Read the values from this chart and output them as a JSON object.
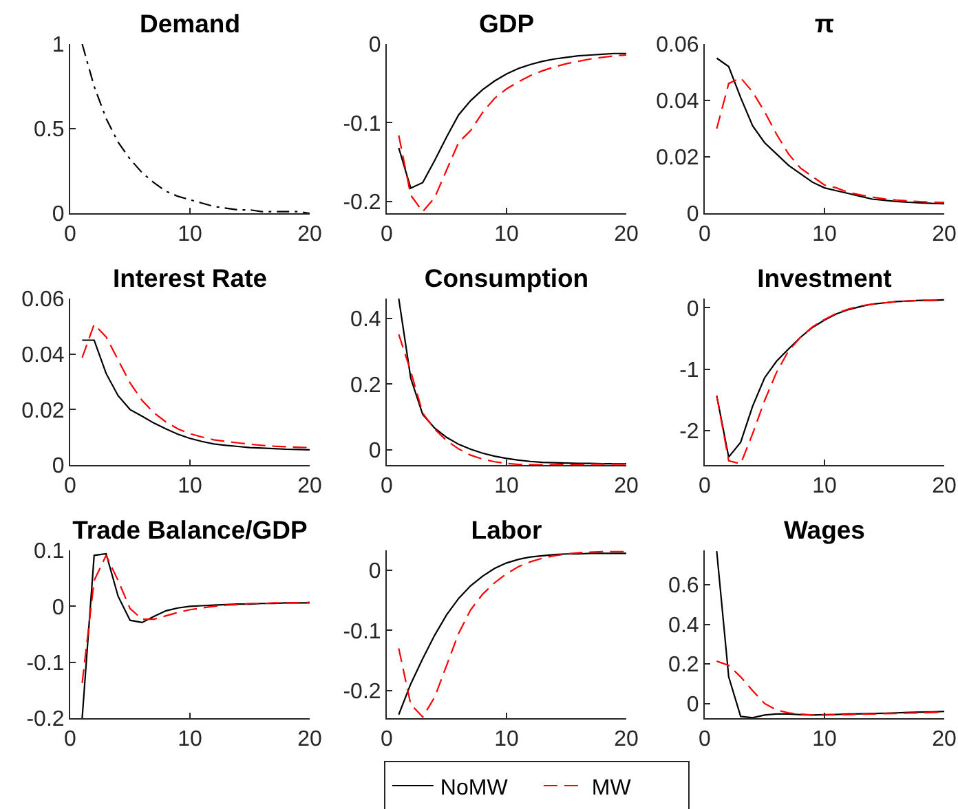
{
  "chart_data": [
    {
      "type": "line",
      "title": "Demand",
      "x": [
        1,
        2,
        3,
        4,
        5,
        6,
        7,
        8,
        9,
        10,
        11,
        12,
        13,
        14,
        15,
        16,
        17,
        18,
        19,
        20
      ],
      "xlim": [
        0,
        20
      ],
      "xticks": [
        0,
        10,
        20
      ],
      "ylim": [
        0,
        1
      ],
      "yticks": [
        0,
        0.5,
        1
      ],
      "series": [
        {
          "color": "#000000",
          "line_style": "dashdot",
          "values": [
            1,
            0.75,
            0.56,
            0.42,
            0.32,
            0.24,
            0.18,
            0.13,
            0.1,
            0.08,
            0.06,
            0.04,
            0.03,
            0.02,
            0.02,
            0.01,
            0.01,
            0.01,
            0.01,
            0
          ]
        }
      ]
    },
    {
      "type": "line",
      "title": "GDP",
      "x": [
        1,
        2,
        3,
        4,
        5,
        6,
        7,
        8,
        9,
        10,
        11,
        12,
        13,
        14,
        15,
        16,
        17,
        18,
        19,
        20
      ],
      "xlim": [
        0,
        20
      ],
      "xticks": [
        0,
        10,
        20
      ],
      "ylim": [
        -0.215,
        0
      ],
      "yticks": [
        -0.2,
        -0.1,
        0
      ],
      "series": [
        {
          "color": "#000000",
          "line_style": "solid",
          "values": [
            -0.132,
            -0.183,
            -0.176,
            -0.148,
            -0.118,
            -0.09,
            -0.072,
            -0.058,
            -0.047,
            -0.038,
            -0.031,
            -0.026,
            -0.022,
            -0.019,
            -0.017,
            -0.015,
            -0.014,
            -0.013,
            -0.012,
            -0.012
          ]
        },
        {
          "color": "#ff0000",
          "line_style": "dashed",
          "values": [
            -0.116,
            -0.192,
            -0.213,
            -0.195,
            -0.16,
            -0.125,
            -0.11,
            -0.087,
            -0.069,
            -0.057,
            -0.048,
            -0.04,
            -0.034,
            -0.029,
            -0.025,
            -0.022,
            -0.019,
            -0.017,
            -0.015,
            -0.014
          ]
        }
      ]
    },
    {
      "type": "line",
      "title": "π",
      "x": [
        1,
        2,
        3,
        4,
        5,
        6,
        7,
        8,
        9,
        10,
        11,
        12,
        13,
        14,
        15,
        16,
        17,
        18,
        19,
        20
      ],
      "xlim": [
        0,
        20
      ],
      "xticks": [
        0,
        10,
        20
      ],
      "ylim": [
        0,
        0.06
      ],
      "yticks": [
        0,
        0.02,
        0.04,
        0.06
      ],
      "series": [
        {
          "color": "#000000",
          "line_style": "solid",
          "values": [
            0.055,
            0.052,
            0.041,
            0.031,
            0.025,
            0.021,
            0.017,
            0.014,
            0.011,
            0.009,
            0.008,
            0.007,
            0.006,
            0.005,
            0.0046,
            0.0042,
            0.0039,
            0.0037,
            0.0035,
            0.0034
          ]
        },
        {
          "color": "#ff0000",
          "line_style": "dashed",
          "values": [
            0.03,
            0.046,
            0.048,
            0.043,
            0.036,
            0.028,
            0.021,
            0.016,
            0.013,
            0.01,
            0.009,
            0.0074,
            0.0065,
            0.0057,
            0.0051,
            0.0047,
            0.0044,
            0.0041,
            0.0039,
            0.0038
          ]
        }
      ]
    },
    {
      "type": "line",
      "title": "Interest Rate",
      "x": [
        1,
        2,
        3,
        4,
        5,
        6,
        7,
        8,
        9,
        10,
        11,
        12,
        13,
        14,
        15,
        16,
        17,
        18,
        19,
        20
      ],
      "xlim": [
        0,
        20
      ],
      "xticks": [
        0,
        10,
        20
      ],
      "ylim": [
        0,
        0.06
      ],
      "yticks": [
        0,
        0.02,
        0.04,
        0.06
      ],
      "series": [
        {
          "color": "#000000",
          "line_style": "solid",
          "values": [
            0.045,
            0.045,
            0.033,
            0.025,
            0.02,
            0.0176,
            0.0151,
            0.013,
            0.0111,
            0.0096,
            0.0085,
            0.0076,
            0.0071,
            0.0067,
            0.0063,
            0.0061,
            0.0059,
            0.0057,
            0.0056,
            0.0055
          ]
        },
        {
          "color": "#ff0000",
          "line_style": "dashed",
          "values": [
            0.0387,
            0.0507,
            0.0462,
            0.0379,
            0.0296,
            0.0233,
            0.0188,
            0.0155,
            0.013,
            0.0113,
            0.0101,
            0.0091,
            0.0085,
            0.008,
            0.0075,
            0.0071,
            0.0068,
            0.0066,
            0.0064,
            0.0063
          ]
        }
      ]
    },
    {
      "type": "line",
      "title": "Consumption",
      "x": [
        1,
        2,
        3,
        4,
        5,
        6,
        7,
        8,
        9,
        10,
        11,
        12,
        13,
        14,
        15,
        16,
        17,
        18,
        19,
        20
      ],
      "xlim": [
        0,
        20
      ],
      "xticks": [
        0,
        10,
        20
      ],
      "ylim": [
        -0.046,
        0.46
      ],
      "yticks": [
        0,
        0.2,
        0.4
      ],
      "series": [
        {
          "color": "#000000",
          "line_style": "solid",
          "values": [
            0.46,
            0.218,
            0.108,
            0.066,
            0.038,
            0.017,
            0.002,
            -0.01,
            -0.019,
            -0.026,
            -0.031,
            -0.035,
            -0.038,
            -0.039,
            -0.04,
            -0.041,
            -0.041,
            -0.042,
            -0.042,
            -0.042
          ]
        },
        {
          "color": "#ff0000",
          "line_style": "dashed",
          "values": [
            0.351,
            0.239,
            0.112,
            0.063,
            0.028,
            0.003,
            -0.016,
            -0.028,
            -0.036,
            -0.041,
            -0.044,
            -0.045,
            -0.045,
            -0.045,
            -0.044,
            -0.044,
            -0.043,
            -0.043,
            -0.043,
            -0.043
          ]
        }
      ]
    },
    {
      "type": "line",
      "title": "Investment",
      "x": [
        1,
        2,
        3,
        4,
        5,
        6,
        7,
        8,
        9,
        10,
        11,
        12,
        13,
        14,
        15,
        16,
        17,
        18,
        19,
        20
      ],
      "xlim": [
        0,
        20
      ],
      "xticks": [
        0,
        10,
        20
      ],
      "ylim": [
        -2.56,
        0.15
      ],
      "yticks": [
        -2,
        -1,
        0
      ],
      "series": [
        {
          "color": "#000000",
          "line_style": "solid",
          "values": [
            -1.43,
            -2.43,
            -2.19,
            -1.6,
            -1.14,
            -0.87,
            -0.67,
            -0.48,
            -0.32,
            -0.2,
            -0.1,
            -0.03,
            0.02,
            0.06,
            0.08,
            0.1,
            0.11,
            0.12,
            0.12,
            0.13
          ]
        },
        {
          "color": "#ff0000",
          "line_style": "dashed",
          "values": [
            -1.43,
            -2.49,
            -2.54,
            -2.05,
            -1.51,
            -1.05,
            -0.7,
            -0.48,
            -0.31,
            -0.19,
            -0.09,
            -0.02,
            0.03,
            0.06,
            0.08,
            0.1,
            0.11,
            0.12,
            0.12,
            0.13
          ]
        }
      ]
    },
    {
      "type": "line",
      "title": "Trade Balance/GDP",
      "x": [
        1,
        2,
        3,
        4,
        5,
        6,
        7,
        8,
        9,
        10,
        11,
        12,
        13,
        14,
        15,
        16,
        17,
        18,
        19,
        20
      ],
      "xlim": [
        0,
        20
      ],
      "xticks": [
        0,
        10,
        20
      ],
      "ylim": [
        -0.2,
        0.1
      ],
      "yticks": [
        -0.2,
        -0.1,
        0,
        0.1
      ],
      "series": [
        {
          "color": "#000000",
          "line_style": "solid",
          "values": [
            -0.2,
            0.091,
            0.094,
            0.018,
            -0.025,
            -0.029,
            -0.018,
            -0.008,
            -0.003,
            0,
            0.001,
            0.002,
            0.003,
            0.004,
            0.004,
            0.005,
            0.005,
            0.006,
            0.006,
            0.006
          ]
        },
        {
          "color": "#ff0000",
          "line_style": "dashed",
          "values": [
            -0.137,
            0.046,
            0.091,
            0.046,
            -0.004,
            -0.023,
            -0.023,
            -0.017,
            -0.011,
            -0.006,
            -0.003,
            0,
            0.002,
            0.003,
            0.005,
            0.005,
            0.006,
            0.006,
            0.006,
            0.007
          ]
        }
      ]
    },
    {
      "type": "line",
      "title": "Labor",
      "x": [
        1,
        2,
        3,
        4,
        5,
        6,
        7,
        8,
        9,
        10,
        11,
        12,
        13,
        14,
        15,
        16,
        17,
        18,
        19,
        20
      ],
      "xlim": [
        0,
        20
      ],
      "xticks": [
        0,
        10,
        20
      ],
      "ylim": [
        -0.246,
        0.033
      ],
      "yticks": [
        -0.2,
        -0.1,
        0
      ],
      "legend": "bottom",
      "series": [
        {
          "name": "NoMW",
          "color": "#000000",
          "line_style": "solid",
          "values": [
            -0.24,
            -0.189,
            -0.147,
            -0.108,
            -0.074,
            -0.047,
            -0.026,
            -0.01,
            0.003,
            0.012,
            0.018,
            0.022,
            0.024,
            0.026,
            0.027,
            0.027,
            0.028,
            0.028,
            0.028,
            0.028
          ]
        },
        {
          "name": "MW",
          "color": "#ff0000",
          "line_style": "dashed",
          "values": [
            -0.13,
            -0.223,
            -0.244,
            -0.211,
            -0.158,
            -0.105,
            -0.066,
            -0.04,
            -0.021,
            -0.006,
            0.006,
            0.014,
            0.02,
            0.024,
            0.027,
            0.029,
            0.03,
            0.031,
            0.031,
            0.031
          ]
        }
      ]
    },
    {
      "type": "line",
      "title": "Wages",
      "x": [
        1,
        2,
        3,
        4,
        5,
        6,
        7,
        8,
        9,
        10,
        11,
        12,
        13,
        14,
        15,
        16,
        17,
        18,
        19,
        20
      ],
      "xlim": [
        0,
        20
      ],
      "xticks": [
        0,
        10,
        20
      ],
      "ylim": [
        -0.074,
        0.774
      ],
      "yticks": [
        0,
        0.2,
        0.4,
        0.6
      ],
      "series": [
        {
          "color": "#000000",
          "line_style": "solid",
          "values": [
            0.77,
            0.135,
            -0.065,
            -0.072,
            -0.058,
            -0.053,
            -0.053,
            -0.056,
            -0.058,
            -0.056,
            -0.055,
            -0.053,
            -0.052,
            -0.05,
            -0.049,
            -0.047,
            -0.045,
            -0.043,
            -0.042,
            -0.04
          ]
        },
        {
          "color": "#ff0000",
          "line_style": "dashed",
          "values": [
            0.214,
            0.193,
            0.135,
            0.065,
            0,
            -0.033,
            -0.047,
            -0.053,
            -0.058,
            -0.058,
            -0.057,
            -0.056,
            -0.054,
            -0.053,
            -0.051,
            -0.05,
            -0.048,
            -0.047,
            -0.045,
            -0.044
          ]
        }
      ]
    }
  ]
}
